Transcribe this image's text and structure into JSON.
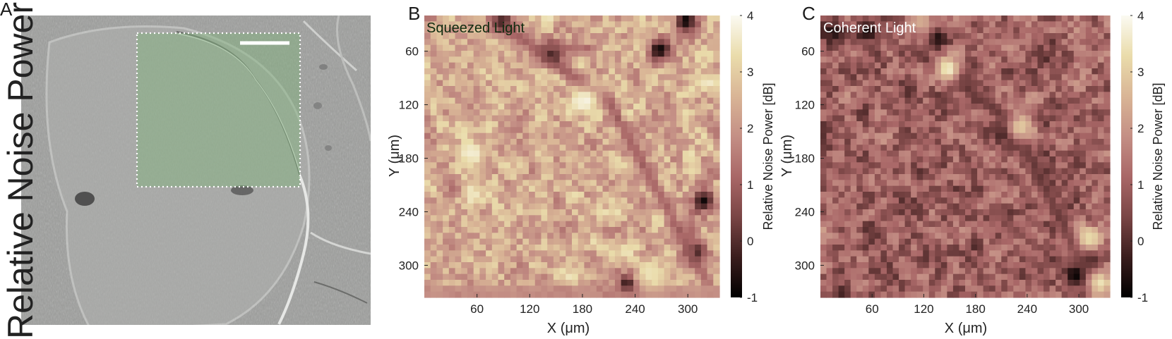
{
  "panel_letters": {
    "a": "A",
    "b": "B",
    "c": "C"
  },
  "overlay_label": "Relative Noise Power",
  "colors": {
    "background": "#ffffff",
    "roi_fill": "#7fb27a",
    "roi_border": "#ffffff",
    "scale_bar": "#ffffff",
    "colormap": [
      "#000000",
      "#3a1d1d",
      "#7a4545",
      "#a96767",
      "#c48f85",
      "#d9b596",
      "#eadcab",
      "#fbfaf2"
    ]
  },
  "chart_data": [
    {
      "type": "image",
      "panel": "A",
      "content": "grayscale microscope image with dotted rectangular region of interest and white scale bar"
    },
    {
      "type": "heatmap",
      "panel": "B",
      "title": "Squeezed Light",
      "xlabel": "X (μm)",
      "ylabel": "Y (μm)",
      "x_ticks": [
        60,
        120,
        180,
        240,
        300
      ],
      "y_ticks": [
        60,
        120,
        180,
        240,
        300
      ],
      "xlim": [
        0,
        336
      ],
      "ylim": [
        336,
        20
      ],
      "colorbar": {
        "label": "Relative Noise Power [dB]",
        "ticks": [
          -1,
          0,
          1,
          2,
          3,
          4
        ],
        "range": [
          -1,
          4
        ]
      },
      "grid_size": 48,
      "mean_db": 2.4,
      "features": [
        {
          "kind": "spot",
          "x": 145,
          "y": 62,
          "db": -1.0
        },
        {
          "kind": "spot",
          "x": 88,
          "y": 28,
          "db": -0.6
        },
        {
          "kind": "spot",
          "x": 268,
          "y": 58,
          "db": -0.8
        },
        {
          "kind": "spot",
          "x": 298,
          "y": 26,
          "db": -0.9
        },
        {
          "kind": "spot",
          "x": 232,
          "y": 324,
          "db": -1.0
        },
        {
          "kind": "spot",
          "x": 318,
          "y": 228,
          "db": -0.8
        },
        {
          "kind": "spot",
          "x": 308,
          "y": 286,
          "db": -0.9
        },
        {
          "kind": "ridge",
          "from": [
            92,
            32
          ],
          "to": [
            212,
            120
          ],
          "db": 0.6
        },
        {
          "kind": "ridge",
          "from": [
            212,
            120
          ],
          "to": [
            322,
            318
          ],
          "db": 0.8
        },
        {
          "kind": "ridge",
          "from": [
            140,
            56
          ],
          "to": [
            190,
            58
          ],
          "db": 1.0
        },
        {
          "kind": "ridge",
          "from": [
            0,
            330
          ],
          "to": [
            336,
            330
          ],
          "db": 1.6
        },
        {
          "kind": "bright",
          "x": 185,
          "y": 115,
          "db": 3.8
        },
        {
          "kind": "bright",
          "x": 55,
          "y": 175,
          "db": 3.7
        },
        {
          "kind": "bright",
          "x": 258,
          "y": 310,
          "db": 3.5
        }
      ]
    },
    {
      "type": "heatmap",
      "panel": "C",
      "title": "Coherent Light",
      "xlabel": "X (μm)",
      "ylabel": "Y (μm)",
      "x_ticks": [
        60,
        120,
        180,
        240,
        300
      ],
      "y_ticks": [
        60,
        120,
        180,
        240,
        300
      ],
      "xlim": [
        0,
        336
      ],
      "ylim": [
        336,
        20
      ],
      "colorbar": {
        "label": "Relative Noise Power [dB]",
        "ticks": [
          -1,
          0,
          1,
          2,
          3,
          4
        ],
        "range": [
          -1,
          4
        ]
      },
      "grid_size": 48,
      "mean_db": 1.0,
      "features": [
        {
          "kind": "spot",
          "x": 15,
          "y": 38,
          "db": -0.6
        },
        {
          "kind": "spot",
          "x": 55,
          "y": 38,
          "db": -0.8
        },
        {
          "kind": "spot",
          "x": 135,
          "y": 45,
          "db": -0.9
        },
        {
          "kind": "spot",
          "x": 158,
          "y": 90,
          "db": -0.9
        },
        {
          "kind": "spot",
          "x": 215,
          "y": 150,
          "db": -0.8
        },
        {
          "kind": "spot",
          "x": 298,
          "y": 312,
          "db": -1.0
        },
        {
          "kind": "spot",
          "x": 312,
          "y": 290,
          "db": -0.7
        },
        {
          "kind": "ridge",
          "from": [
            110,
            60
          ],
          "to": [
            222,
            140
          ],
          "db": 0.0
        },
        {
          "kind": "ridge",
          "from": [
            222,
            140
          ],
          "to": [
            318,
            322
          ],
          "db": 0.1
        },
        {
          "kind": "bright",
          "x": 148,
          "y": 80,
          "db": 3.7
        },
        {
          "kind": "bright",
          "x": 232,
          "y": 145,
          "db": 3.0
        },
        {
          "kind": "bright",
          "x": 312,
          "y": 270,
          "db": 3.3
        },
        {
          "kind": "bright",
          "x": 325,
          "y": 320,
          "db": 3.4
        },
        {
          "kind": "bright",
          "x": 118,
          "y": 28,
          "db": 2.4
        }
      ]
    }
  ]
}
